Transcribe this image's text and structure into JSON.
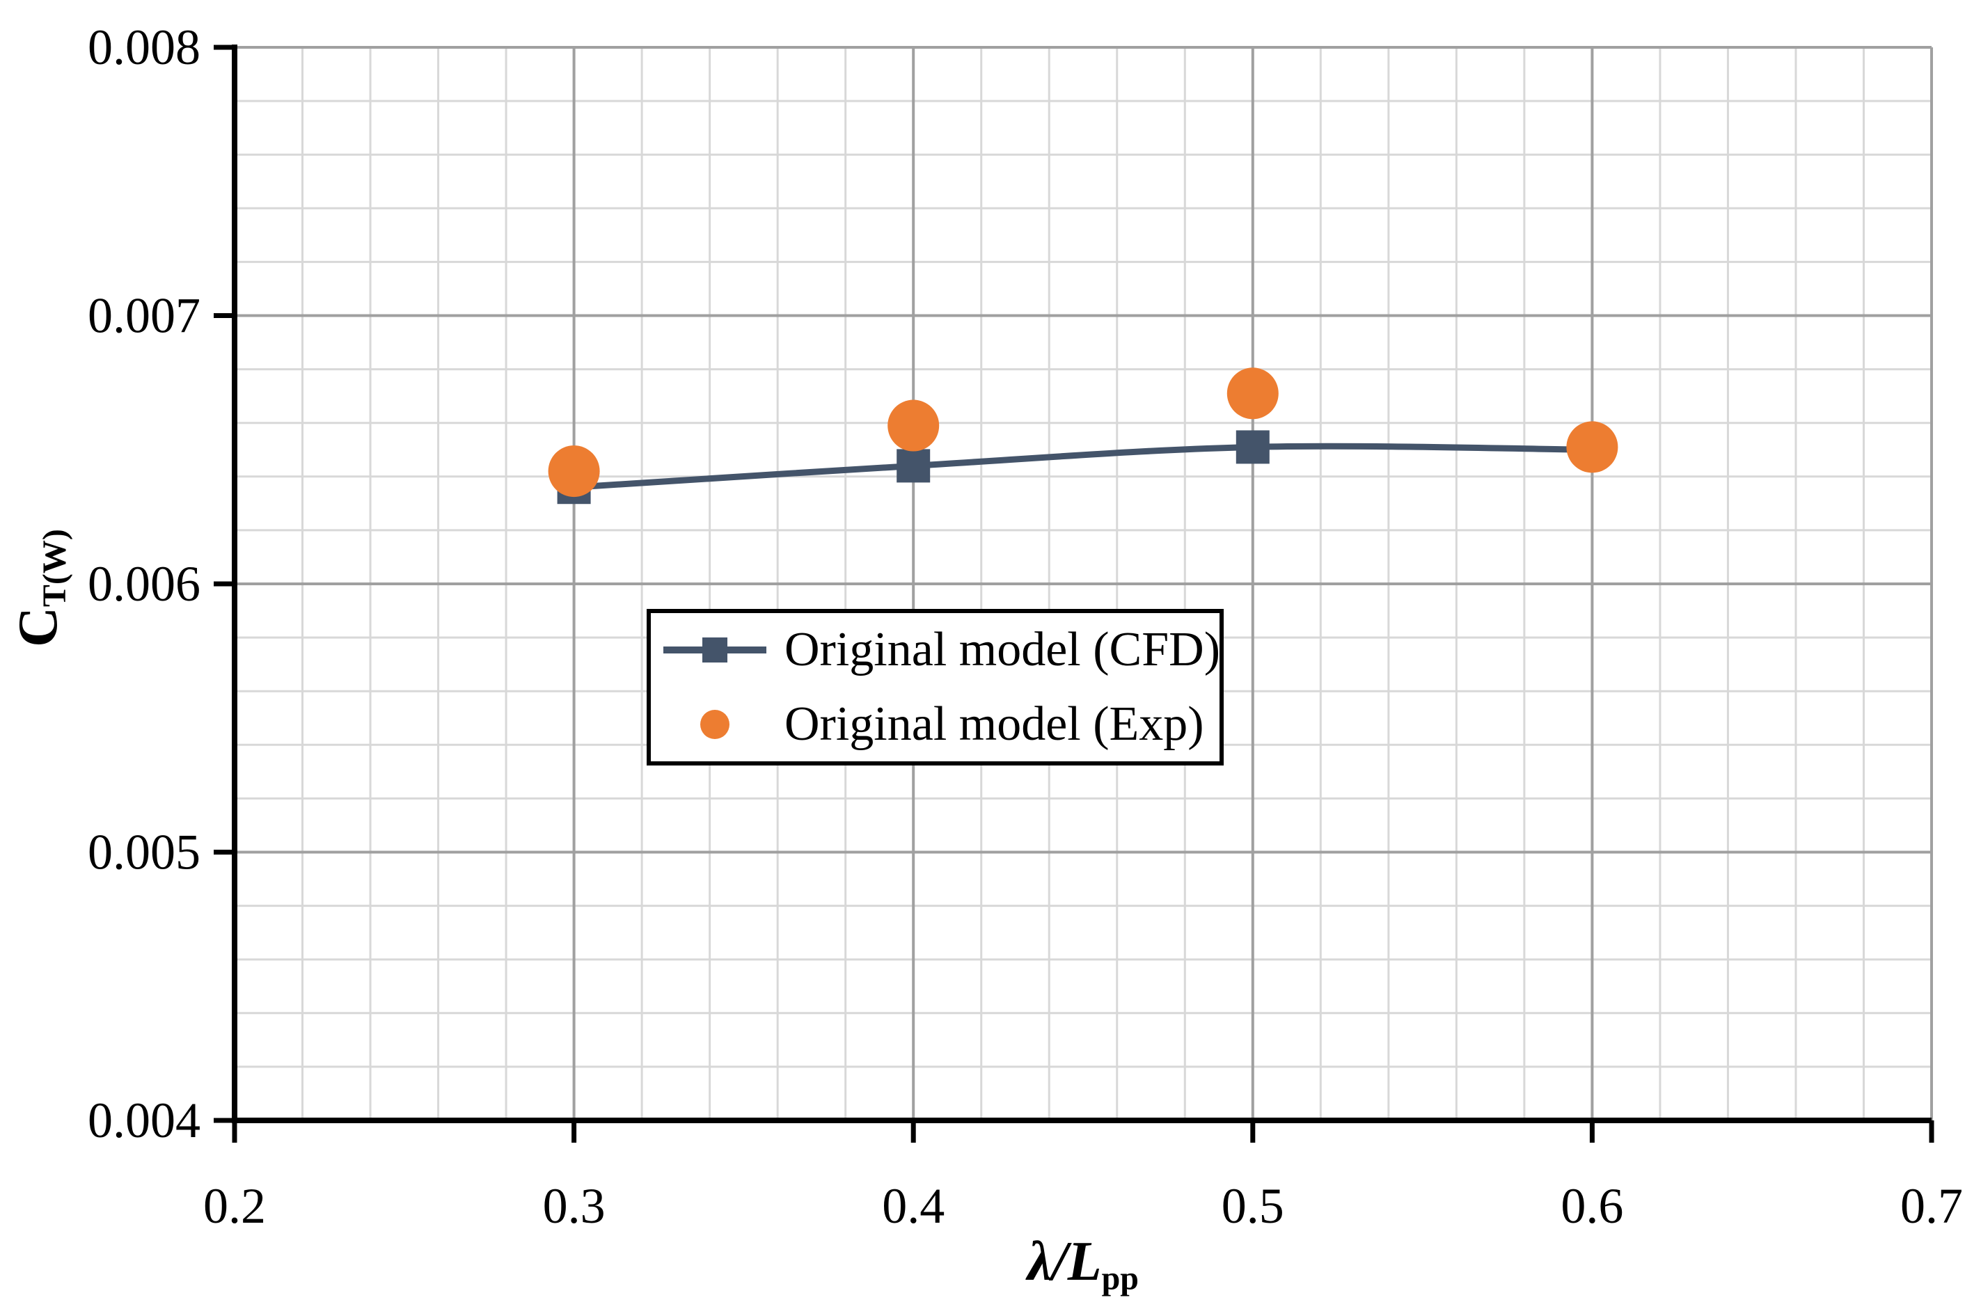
{
  "chart_data": {
    "type": "line-scatter",
    "title": "",
    "xlabel": {
      "main": "λ/L",
      "sub": "pp"
    },
    "ylabel": {
      "main": "C",
      "sub": "T(W)"
    },
    "xlim": [
      0.2,
      0.7
    ],
    "ylim": [
      0.004,
      0.008
    ],
    "x_ticks": [
      0.2,
      0.3,
      0.4,
      0.5,
      0.6,
      0.7
    ],
    "x_tick_labels": [
      "0.2",
      "0.3",
      "0.4",
      "0.5",
      "0.6",
      "0.7"
    ],
    "y_ticks": [
      0.004,
      0.005,
      0.006,
      0.007,
      0.008
    ],
    "y_tick_labels": [
      "0.004",
      "0.005",
      "0.006",
      "0.007",
      "0.008"
    ],
    "x_minor_step": 0.02,
    "y_minor_step": 0.0002,
    "grid": {
      "show": true,
      "minor_color": "#D8D8D8",
      "major_color": "#A0A0A0"
    },
    "axis_color": "#000000",
    "x": [
      0.3,
      0.4,
      0.5,
      0.6
    ],
    "series": [
      {
        "name": "Original model (CFD)",
        "marker": "square",
        "line": "smooth",
        "color": "#44546A",
        "values": [
          0.00636,
          0.00644,
          0.00651,
          0.0065
        ]
      },
      {
        "name": "Original model (Exp)",
        "marker": "circle",
        "line": "none",
        "color": "#ED7D31",
        "values": [
          0.00642,
          0.00659,
          0.00671,
          0.00651
        ]
      }
    ],
    "legend": {
      "position": "center-left-inside-plot",
      "border_color": "#000000",
      "background": "#FFFFFF"
    }
  }
}
